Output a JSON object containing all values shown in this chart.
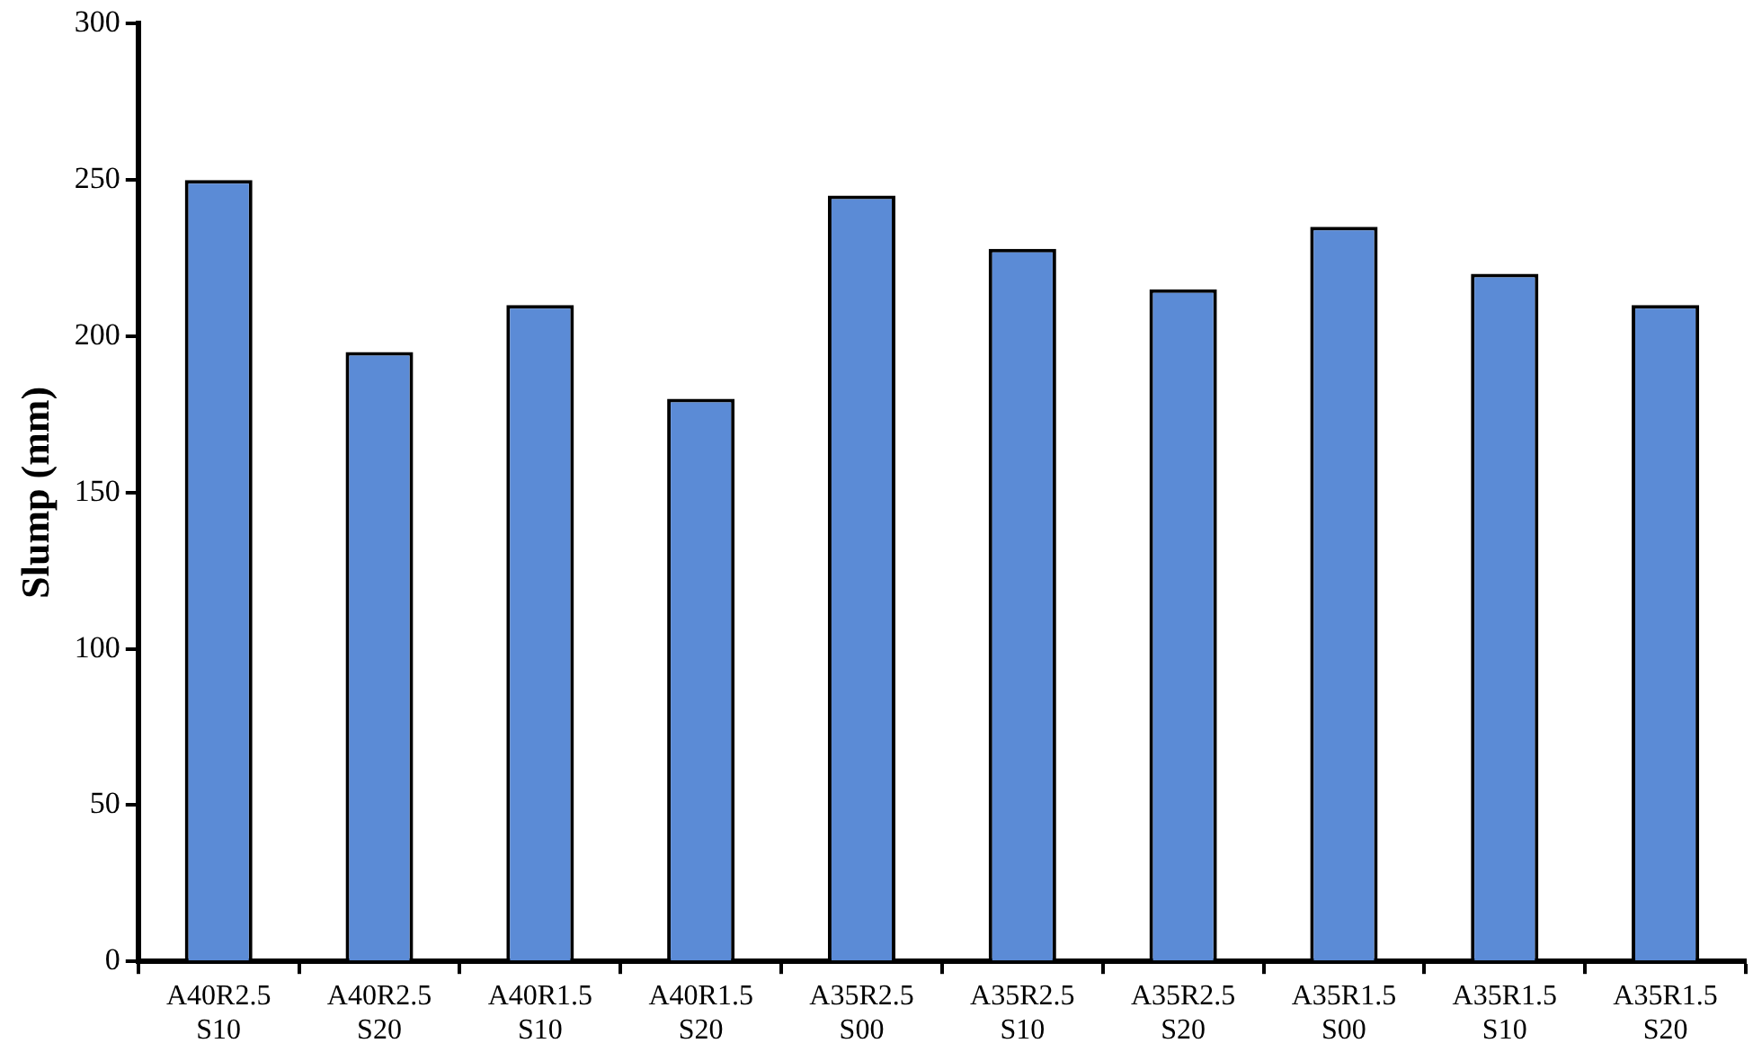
{
  "chart_data": {
    "type": "bar",
    "ylabel": "Slump (mm)",
    "categories": [
      "A40R2.5 S10",
      "A40R2.5 S20",
      "A40R1.5 S10",
      "A40R1.5 S20",
      "A35R2.5 S00",
      "A35R2.5 S10",
      "A35R2.5 S20",
      "A35R1.5 S00",
      "A35R1.5 S10",
      "A35R1.5 S20"
    ],
    "values": [
      250,
      195,
      210,
      180,
      245,
      228,
      215,
      235,
      220,
      210
    ],
    "color": "#5b8bd6",
    "ylim": [
      0,
      300
    ],
    "yticks": [
      0,
      50,
      100,
      150,
      200,
      250,
      300
    ],
    "grid": false,
    "legend": false
  }
}
